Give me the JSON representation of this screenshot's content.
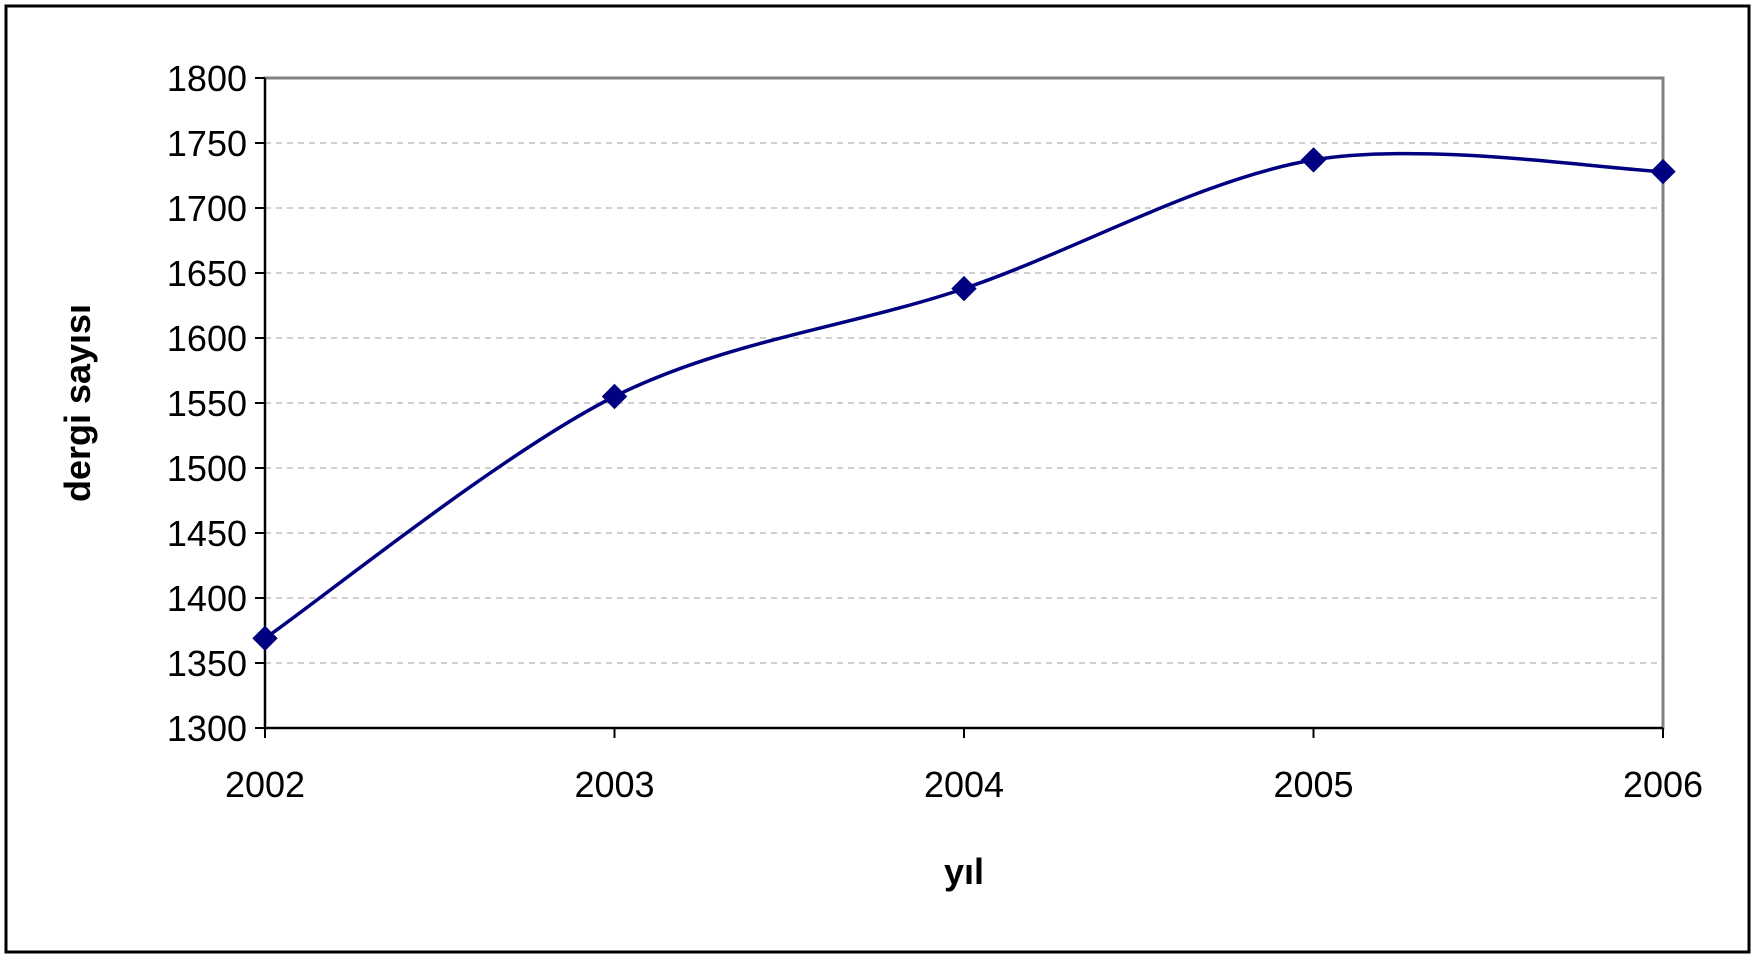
{
  "chart_data": {
    "type": "line",
    "title": "",
    "xlabel": "yıl",
    "ylabel": "dergi sayısı",
    "categories": [
      "2002",
      "2003",
      "2004",
      "2005",
      "2006"
    ],
    "series": [
      {
        "values": [
          1369,
          1555,
          1638,
          1737,
          1728
        ],
        "color": "#000080"
      }
    ],
    "ylim": [
      1300,
      1800
    ],
    "yticks": [
      "1300",
      "1350",
      "1400",
      "1450",
      "1500",
      "1550",
      "1600",
      "1650",
      "1700",
      "1750",
      "1800"
    ],
    "grid": "horizontal-dashed",
    "legend": "none",
    "plot_border_color": "#808080",
    "grid_color": "#c0c0c0"
  }
}
